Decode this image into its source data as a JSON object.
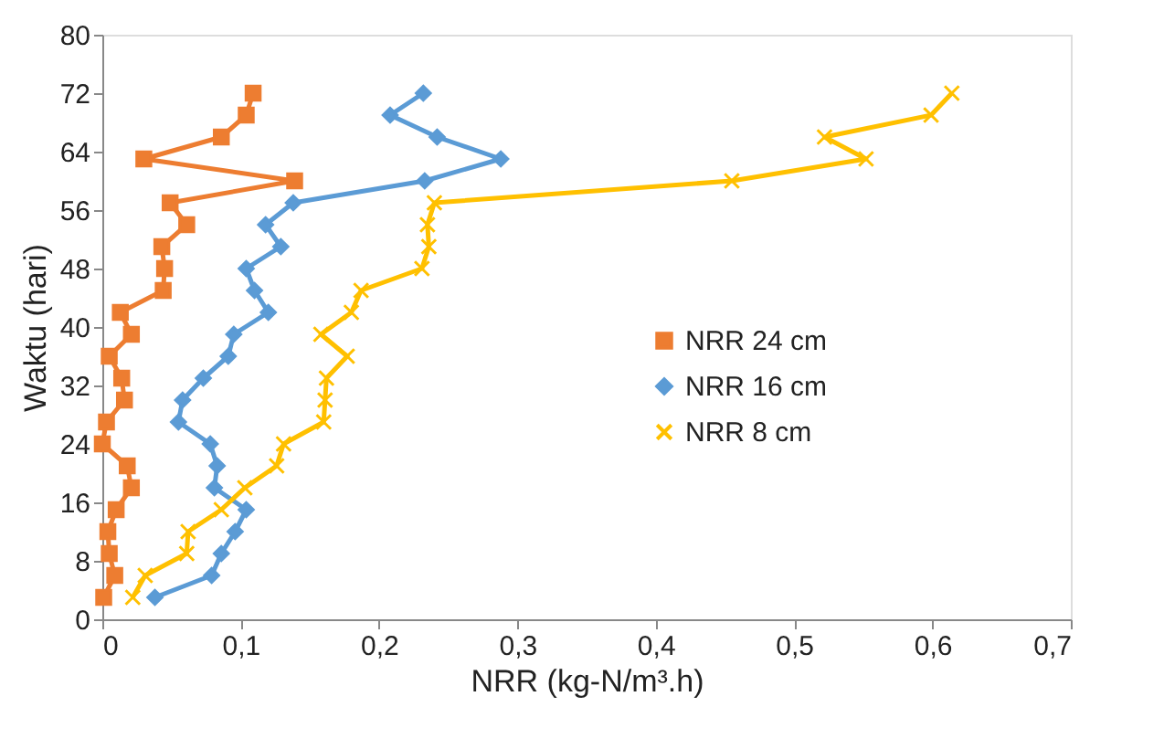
{
  "chart_data": {
    "type": "line",
    "xlabel": "NRR (kg-N/m³.h)",
    "ylabel": "Waktu (hari)",
    "xlim": [
      0,
      0.7
    ],
    "xticks": [
      0,
      {
        "value": 0.1,
        "label": "0,1"
      },
      {
        "value": 0.2,
        "label": "0,2"
      },
      {
        "value": 0.3,
        "label": "0,3"
      },
      {
        "value": 0.4,
        "label": "0,4"
      },
      {
        "value": 0.5,
        "label": "0,5"
      },
      {
        "value": 0.6,
        "label": "0,6"
      },
      {
        "value": 0.7,
        "label": "0,7"
      }
    ],
    "ylim": [
      0,
      80
    ],
    "yticks": [
      0,
      8,
      16,
      24,
      32,
      40,
      48,
      56,
      64,
      72,
      80
    ],
    "grid": false,
    "legend": "center",
    "line_style": "solid",
    "series": [
      {
        "name": "NRR 24 cm",
        "color": "#ed7d31",
        "marker": "square",
        "x": [
          0.001,
          0.009,
          0.005,
          0.004,
          0.01,
          0.021,
          0.018,
          0.0,
          0.003,
          0.016,
          0.014,
          0.005,
          0.021,
          0.013,
          0.044,
          0.045,
          0.043,
          0.061,
          0.049,
          0.139,
          0.03,
          0.086,
          0.104,
          0.109
        ],
        "values": [
          3,
          6,
          9,
          12,
          15,
          18,
          21,
          24,
          27,
          30,
          33,
          36,
          39,
          42,
          45,
          48,
          51,
          54,
          57,
          60,
          63,
          66,
          69,
          72
        ]
      },
      {
        "name": "NRR 16 cm",
        "color": "#5b9bd5",
        "marker": "diamond",
        "x": [
          0.038,
          0.079,
          0.086,
          0.096,
          0.104,
          0.081,
          0.083,
          0.078,
          0.055,
          0.058,
          0.073,
          0.091,
          0.095,
          0.12,
          0.11,
          0.104,
          0.129,
          0.118,
          0.138,
          0.233,
          0.288,
          0.242,
          0.208,
          0.232
        ],
        "values": [
          3,
          6,
          9,
          12,
          15,
          18,
          21,
          24,
          27,
          30,
          33,
          36,
          39,
          42,
          45,
          48,
          51,
          54,
          57,
          60,
          63,
          66,
          69,
          72
        ]
      },
      {
        "name": "NRR 8 cm",
        "color": "#ffc000",
        "marker": "cross",
        "x": [
          0.022,
          0.031,
          0.061,
          0.062,
          0.086,
          0.103,
          0.126,
          0.131,
          0.16,
          0.161,
          0.162,
          0.177,
          0.158,
          0.18,
          0.187,
          0.231,
          0.236,
          0.235,
          0.24,
          0.455,
          0.552,
          0.522,
          0.599,
          0.614
        ],
        "values": [
          3,
          6,
          9,
          12,
          15,
          18,
          21,
          24,
          27,
          30,
          33,
          36,
          39,
          42,
          45,
          48,
          51,
          54,
          57,
          60,
          63,
          66,
          69,
          72
        ]
      }
    ]
  }
}
